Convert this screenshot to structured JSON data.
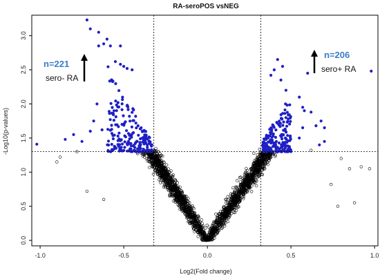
{
  "chart_data": {
    "type": "scatter",
    "title": "RA-seroPOS vsNEG",
    "xlabel": "Log2(Fold change)",
    "ylabel": "-Log10(p-values)",
    "xlim": [
      -1.05,
      1.02
    ],
    "ylim": [
      -0.08,
      3.3
    ],
    "x_ticks": [
      "-1.0",
      "-0.5",
      "0.0",
      "0.5",
      "1.0"
    ],
    "y_ticks": [
      "0.0",
      "0.5",
      "1.0",
      "1.5",
      "2.0",
      "2.5",
      "3.0"
    ],
    "thresholds": {
      "x": [
        -0.32,
        0.32
      ],
      "y": 1.3
    },
    "grid": false,
    "legend": "none",
    "colors": {
      "significant": "#1f1fc4",
      "nonsignificant": "#000000"
    },
    "series": [
      {
        "role": "significant",
        "points": [
          [
            -0.72,
            3.23
          ],
          [
            -0.7,
            3.1
          ],
          [
            -0.65,
            3.05
          ],
          [
            -0.6,
            2.95
          ],
          [
            -0.62,
            2.88
          ],
          [
            -0.58,
            2.85
          ],
          [
            -0.52,
            2.85
          ],
          [
            -0.65,
            2.85
          ],
          [
            -0.55,
            2.62
          ],
          [
            -0.52,
            2.58
          ],
          [
            -0.5,
            2.55
          ],
          [
            -0.48,
            2.52
          ],
          [
            -0.45,
            2.5
          ],
          [
            -1.02,
            1.41
          ],
          [
            -0.85,
            1.48
          ],
          [
            -0.8,
            1.55
          ],
          [
            -0.75,
            1.45
          ],
          [
            -0.7,
            1.6
          ],
          [
            -0.68,
            1.75
          ],
          [
            -0.66,
            2.0
          ],
          [
            -0.63,
            1.62
          ]
        ],
        "cluster": {
          "x_range": [
            -0.6,
            -0.33
          ],
          "y_range": [
            1.3,
            2.55
          ],
          "count": 200
        }
      },
      {
        "role": "significant",
        "points": [
          [
            0.42,
            2.65
          ],
          [
            0.45,
            2.55
          ],
          [
            0.4,
            2.5
          ],
          [
            0.6,
            2.45
          ],
          [
            0.38,
            2.42
          ],
          [
            0.44,
            2.35
          ],
          [
            0.47,
            2.2
          ],
          [
            0.55,
            2.1
          ],
          [
            0.57,
            1.95
          ],
          [
            0.58,
            1.9
          ],
          [
            0.62,
            1.88
          ],
          [
            0.98,
            2.48
          ],
          [
            0.68,
            1.75
          ],
          [
            0.65,
            1.68
          ],
          [
            0.7,
            1.65
          ],
          [
            0.7,
            1.45
          ],
          [
            0.67,
            1.4
          ],
          [
            0.57,
            1.65
          ],
          [
            0.55,
            1.5
          ]
        ],
        "cluster": {
          "x_range": [
            0.33,
            0.5
          ],
          "y_range": [
            1.3,
            2.0
          ],
          "count": 187
        }
      },
      {
        "role": "nonsignificant",
        "points": [
          [
            -0.9,
            1.15
          ],
          [
            -0.72,
            0.72
          ],
          [
            -0.62,
            0.6
          ],
          [
            -0.78,
            1.3
          ],
          [
            0.8,
            1.2
          ],
          [
            0.85,
            1.05
          ],
          [
            0.88,
            0.55
          ],
          [
            0.92,
            1.08
          ],
          [
            0.97,
            1.05
          ],
          [
            0.62,
            1.32
          ],
          [
            0.78,
            0.5
          ],
          [
            0.74,
            0.82
          ],
          [
            -0.88,
            1.22
          ]
        ],
        "cloud": {
          "count": 4200
        }
      }
    ],
    "annotations": [
      {
        "count_text": "n=221",
        "group_text": "sero- RA",
        "arrow": "up"
      },
      {
        "count_text": "n=206",
        "group_text": "sero+ RA",
        "arrow": "up"
      }
    ]
  }
}
